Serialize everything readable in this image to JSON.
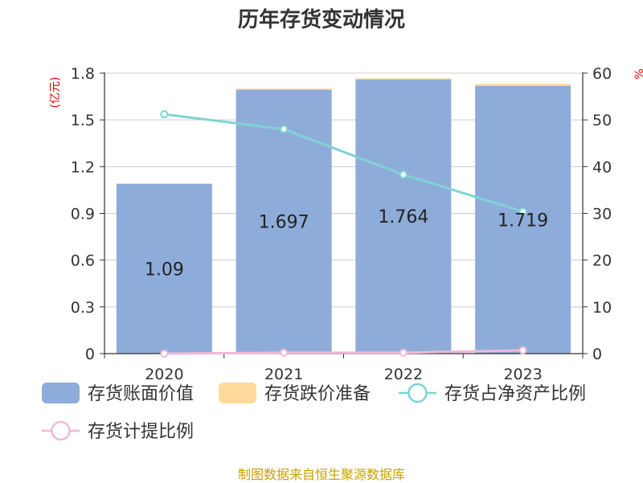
{
  "chart_data": {
    "type": "bar",
    "title": "历年存货变动情况",
    "categories": [
      "2020",
      "2021",
      "2022",
      "2023"
    ],
    "left_axis": {
      "unit": "(亿元)",
      "ylim": [
        0,
        1.8
      ],
      "ticks": [
        "0",
        "0.3",
        "0.6",
        "0.9",
        "1.2",
        "1.5",
        "1.8"
      ]
    },
    "right_axis": {
      "unit": "%",
      "ylim": [
        0,
        60
      ],
      "ticks": [
        "0",
        "10",
        "20",
        "30",
        "40",
        "50",
        "60"
      ]
    },
    "series": [
      {
        "name": "存货账面价值",
        "type": "bar",
        "axis": "left",
        "color": "#8eacd9",
        "values": [
          1.09,
          1.697,
          1.764,
          1.719
        ],
        "labels": [
          "1.09",
          "1.697",
          "1.764",
          "1.719"
        ]
      },
      {
        "name": "存货跌价准备",
        "type": "bar",
        "axis": "left",
        "color": "#ffd99a",
        "stacked": true,
        "values": [
          0.0,
          0.004,
          0.003,
          0.012
        ]
      },
      {
        "name": "存货占净资产比例",
        "type": "line",
        "axis": "right",
        "color": "#7fd3d3",
        "values": [
          51.2,
          48.0,
          38.3,
          30.4
        ]
      },
      {
        "name": "存货计提比例",
        "type": "line",
        "axis": "right",
        "color": "#f0b8d8",
        "values": [
          0.0,
          0.2,
          0.2,
          0.7
        ]
      }
    ],
    "grid": true,
    "legend_position": "bottom"
  },
  "footer": {
    "source": "制图数据来自恒生聚源数据库"
  }
}
